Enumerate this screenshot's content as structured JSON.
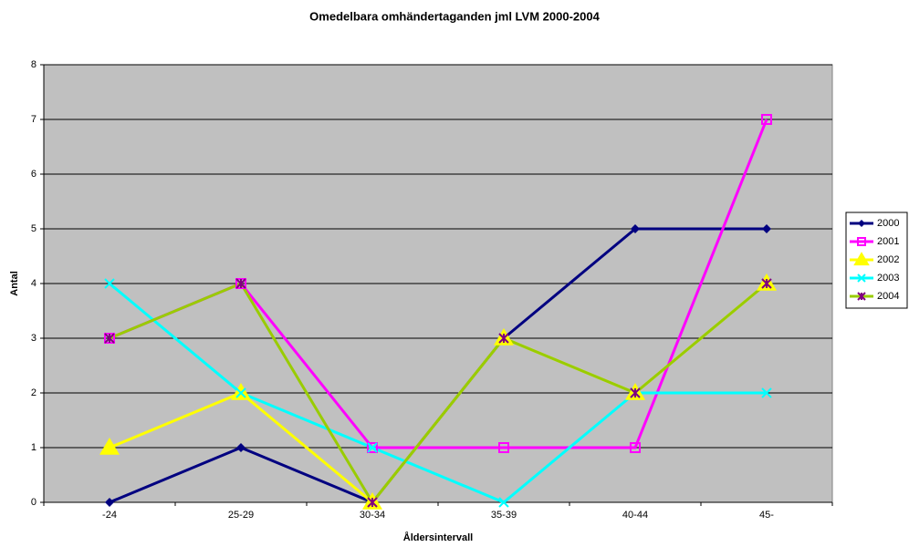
{
  "chart_data": {
    "type": "line",
    "title": "Omedelbara omhändertaganden jml LVM 2000-2004",
    "x_label": "Åldersintervall",
    "y_label": "Antal",
    "categories": [
      "-24",
      "25-29",
      "30-34",
      "35-39",
      "40-44",
      "45-"
    ],
    "series": [
      {
        "name": "2000",
        "color": "#000080",
        "marker": "diamond",
        "values": [
          0,
          1,
          0,
          3,
          5,
          5
        ]
      },
      {
        "name": "2001",
        "color": "#ff00ff",
        "marker": "square",
        "values": [
          3,
          4,
          1,
          1,
          1,
          7
        ]
      },
      {
        "name": "2002",
        "color": "#ffff00",
        "marker": "triangle",
        "values": [
          1,
          2,
          0,
          3,
          2,
          4
        ]
      },
      {
        "name": "2003",
        "color": "#00ffff",
        "marker": "x",
        "values": [
          4,
          2,
          1,
          0,
          2,
          2
        ]
      },
      {
        "name": "2004",
        "color": "#99cc00",
        "marker": "star",
        "values": [
          3,
          4,
          0,
          3,
          2,
          4
        ]
      }
    ],
    "ylim": [
      0,
      8
    ],
    "yticks": [
      0,
      1,
      2,
      3,
      4,
      5,
      6,
      7,
      8
    ],
    "grid": true,
    "legend": "right",
    "plot_background": "#c0c0c0"
  }
}
